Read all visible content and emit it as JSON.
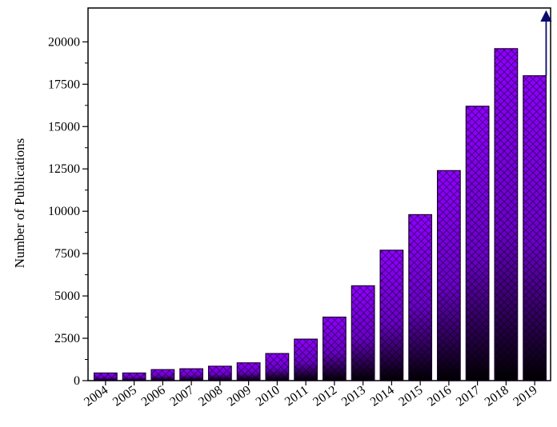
{
  "chart_data": {
    "type": "bar",
    "title": "",
    "xlabel": "",
    "ylabel": "Number of Publications",
    "categories": [
      "2004",
      "2005",
      "2006",
      "2007",
      "2008",
      "2009",
      "2010",
      "2011",
      "2012",
      "2013",
      "2014",
      "2015",
      "2016",
      "2017",
      "2018",
      "2019"
    ],
    "values": [
      450,
      450,
      650,
      700,
      850,
      1050,
      1600,
      2450,
      3750,
      5600,
      7700,
      9800,
      12400,
      16200,
      19600,
      18000
    ],
    "ylim": [
      0,
      22000
    ],
    "yticks": [
      0,
      2500,
      5000,
      7500,
      10000,
      12500,
      15000,
      17500,
      20000
    ],
    "grid": false,
    "legend": "none",
    "colors": {
      "bar_top": "#8f00ff",
      "bar_bottom": "#000000",
      "edge": "#1a0030",
      "arrow": "#0a0a6e"
    },
    "annotations": [
      {
        "type": "arrow",
        "category": "2019",
        "direction": "up"
      }
    ]
  }
}
